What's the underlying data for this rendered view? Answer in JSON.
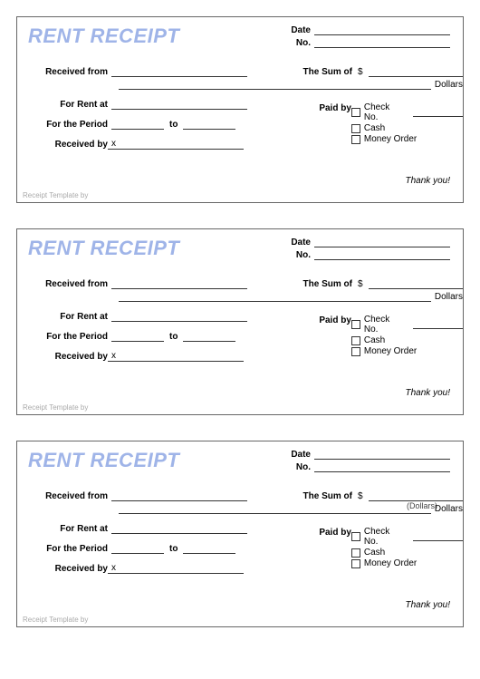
{
  "title_color": "#9fb4e8",
  "border_color": "#666666",
  "line_color": "#333333",
  "text_color": "#000000",
  "footer_color": "#b0b0b0",
  "receipts": [
    {
      "title": "RENT RECEIPT",
      "date_label": "Date",
      "no_label": "No.",
      "received_from_label": "Received from",
      "sum_label": "The Sum of",
      "currency_symbol": "$",
      "dollars_label": "Dollars",
      "rent_at_label": "For Rent at",
      "paid_by_label": "Paid by",
      "check_no_label": "Check No.",
      "cash_label": "Cash",
      "money_order_label": "Money Order",
      "period_label": "For the Period",
      "to_label": "to",
      "received_by_label": "Received by",
      "received_by_mark": "x",
      "thank_you": "Thank you!",
      "footer": "Receipt Template by",
      "overlay_text": ""
    },
    {
      "title": "RENT RECEIPT",
      "date_label": "Date",
      "no_label": "No.",
      "received_from_label": "Received from",
      "sum_label": "The Sum of",
      "currency_symbol": "$",
      "dollars_label": "Dollars",
      "rent_at_label": "For Rent at",
      "paid_by_label": "Paid by",
      "check_no_label": "Check No.",
      "cash_label": "Cash",
      "money_order_label": "Money Order",
      "period_label": "For the Period",
      "to_label": "to",
      "received_by_label": "Received by",
      "received_by_mark": "x",
      "thank_you": "Thank you!",
      "footer": "Receipt Template by",
      "overlay_text": ""
    },
    {
      "title": "RENT RECEIPT",
      "date_label": "Date",
      "no_label": "No.",
      "received_from_label": "Received from",
      "sum_label": "The Sum of",
      "currency_symbol": "$",
      "dollars_label": "Dollars",
      "rent_at_label": "For Rent at",
      "paid_by_label": "Paid by",
      "check_no_label": "Check No.",
      "cash_label": "Cash",
      "money_order_label": "Money Order",
      "period_label": "For the Period",
      "to_label": "to",
      "received_by_label": "Received by",
      "received_by_mark": "x",
      "thank_you": "Thank you!",
      "footer": "Receipt Template by",
      "overlay_text": "(Dollars)"
    }
  ]
}
